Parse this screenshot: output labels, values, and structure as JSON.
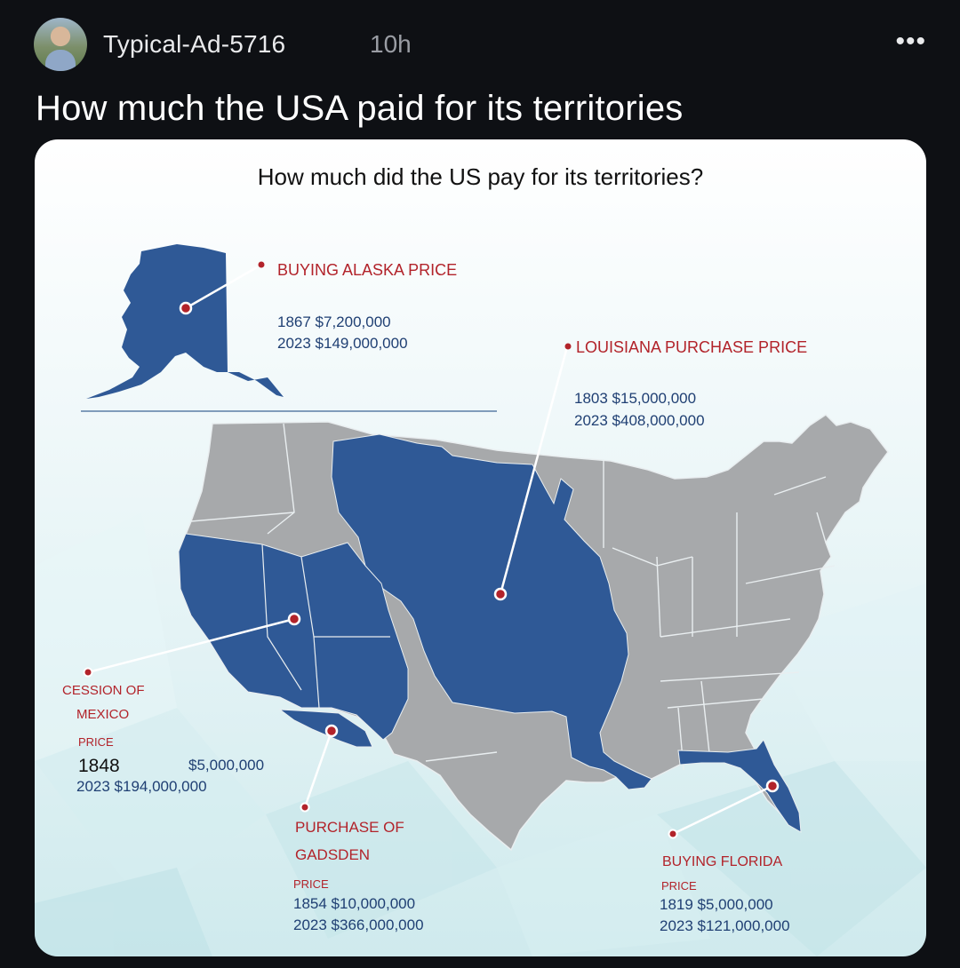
{
  "post": {
    "username": "Typical-Ad-5716",
    "time": "10h",
    "more": "•••",
    "title": "How much the USA paid for its territories"
  },
  "map": {
    "title": "How much did the US pay for its territories?",
    "alaska": {
      "heading": "BUYING ALASKA PRICE",
      "line1": "1867 $7,200,000",
      "line2": "2023 $149,000,000"
    },
    "louisiana": {
      "heading": "LOUISIANA PURCHASE PRICE",
      "line1": "1803 $15,000,000",
      "line2": "2023 $408,000,000"
    },
    "mexico": {
      "heading1": "CESSION OF",
      "heading2": "MEXICO",
      "price": "PRICE",
      "year": "1848",
      "amount": "$5,000,000",
      "line2": "2023 $194,000,000"
    },
    "gadsden": {
      "heading1": "PURCHASE OF",
      "heading2": "GADSDEN",
      "price": "PRICE",
      "line1": "1854 $10,000,000",
      "line2": "2023 $366,000,000"
    },
    "florida": {
      "heading": "BUYING FLORIDA",
      "price": "PRICE",
      "line1": "1819 $5,000,000",
      "line2": "2023 $121,000,000"
    },
    "colors": {
      "territory": "#2f5996",
      "states": "#a7a9ab",
      "accent": "#b2232a",
      "text_blue": "#1f3f73"
    }
  }
}
